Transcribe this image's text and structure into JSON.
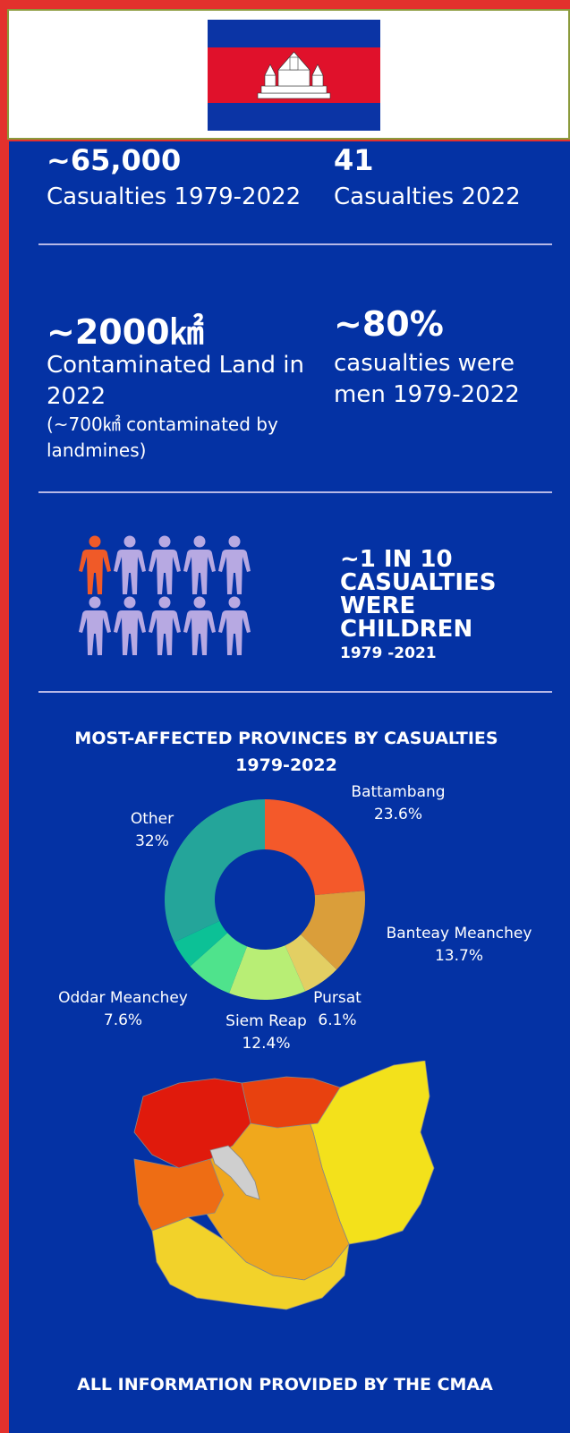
{
  "stats": {
    "casualties_total_value": "~65,000",
    "casualties_total_label": "Casualties 1979-2022",
    "casualties_2022_value": "41",
    "casualties_2022_label": "Casualties 2022",
    "land_value": "~2000㎢",
    "land_label_1": "Contaminated Land in",
    "land_label_2": "2022",
    "land_note_1": "(~700㎢ contaminated by",
    "land_note_2": "landmines)",
    "men_value": "~80%",
    "men_label_1": "casualties were",
    "men_label_2": "men 1979-2022"
  },
  "children": {
    "line1": "~1 IN 10",
    "line2": "CASUALTIES",
    "line3": "WERE",
    "line4": "CHILDREN",
    "years": "1979 -2021",
    "highlighted_count": 1,
    "total_count": 10
  },
  "chart_title_1": "MOST-AFFECTED PROVINCES BY CASUALTIES",
  "chart_title_2": "1979-2022",
  "chart_data": {
    "type": "pie",
    "title": "MOST-AFFECTED PROVINCES BY CASUALTIES 1979-2022",
    "slices": [
      {
        "label": "Battambang",
        "value": 23.6,
        "display": "23.6%",
        "color": "#f4592a"
      },
      {
        "label": "Banteay Meanchey",
        "value": 13.7,
        "display": "13.7%",
        "color": "#da9e3a"
      },
      {
        "label": "Pursat",
        "value": 6.1,
        "display": "6.1%",
        "color": "#e3cf63"
      },
      {
        "label": "Siem Reap",
        "value": 12.4,
        "display": "12.4%",
        "color": "#b8ee75"
      },
      {
        "label": "Oddar Meanchey",
        "value": 7.6,
        "display": "7.6%",
        "color": "#4fe38c"
      },
      {
        "label": "",
        "value": 4.6,
        "display": "",
        "color": "#0cc196"
      },
      {
        "label": "Other",
        "value": 32.0,
        "display": "32%",
        "color": "#24a59a"
      }
    ]
  },
  "footer": "ALL INFORMATION PROVIDED BY THE CMAA",
  "colors": {
    "background": "#0432a4",
    "figure_highlight": "#f05a28",
    "figure_normal": "#b7a9e2"
  }
}
